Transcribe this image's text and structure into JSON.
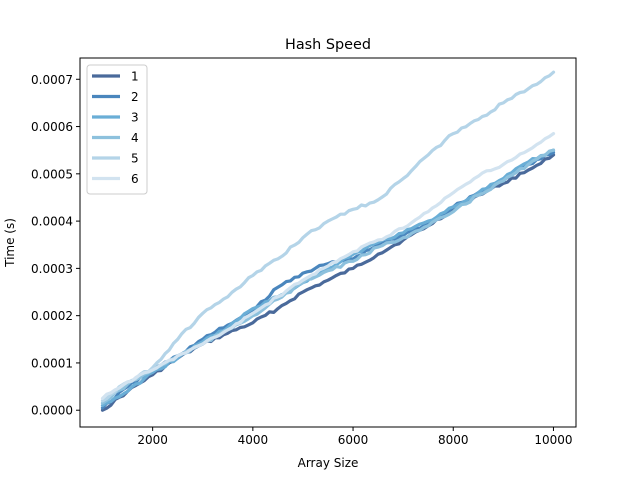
{
  "chart_data": {
    "type": "line",
    "title": "Hash Speed",
    "xlabel": "Array Size",
    "ylabel": "Time (s)",
    "xlim": [
      550,
      10450
    ],
    "ylim": [
      -3.55e-05,
      0.000745
    ],
    "xticks": [
      2000,
      4000,
      6000,
      8000,
      10000
    ],
    "yticks": [
      0.0,
      0.0001,
      0.0002,
      0.0003,
      0.0004,
      0.0005,
      0.0006,
      0.0007
    ],
    "xtick_labels": [
      "2000",
      "4000",
      "6000",
      "8000",
      "10000"
    ],
    "ytick_labels": [
      "0.0000",
      "0.0001",
      "0.0002",
      "0.0003",
      "0.0004",
      "0.0005",
      "0.0006",
      "0.0007"
    ],
    "grid": false,
    "legend_position": "top-left",
    "x": [
      1000,
      1500,
      2000,
      2500,
      3000,
      3500,
      4000,
      4500,
      5000,
      5500,
      6000,
      6500,
      7000,
      7500,
      8000,
      8500,
      9000,
      9500,
      10000
    ],
    "series": [
      {
        "name": "1",
        "color": "#4a6a9b",
        "values": [
          0.0,
          4e-05,
          7.5e-05,
          0.00011,
          0.00014,
          0.000163,
          0.000185,
          0.000215,
          0.00025,
          0.000275,
          0.0003,
          0.00033,
          0.00036,
          0.00039,
          0.000425,
          0.000455,
          0.00048,
          0.000508,
          0.00054
        ]
      },
      {
        "name": "2",
        "color": "#4a86bd",
        "values": [
          5e-06,
          5e-05,
          8.5e-05,
          0.000115,
          0.00015,
          0.00018,
          0.00021,
          0.00026,
          0.00029,
          0.00031,
          0.00032,
          0.00035,
          0.00037,
          0.000395,
          0.00043,
          0.00046,
          0.00049,
          0.00052,
          0.000545
        ]
      },
      {
        "name": "3",
        "color": "#6aaed6",
        "values": [
          1e-05,
          4e-05,
          8e-05,
          0.00011,
          0.000145,
          0.000175,
          0.000215,
          0.00024,
          0.00027,
          0.0003,
          0.00033,
          0.000355,
          0.000375,
          0.0004,
          0.00043,
          0.00046,
          0.00049,
          0.000525,
          0.00055
        ]
      },
      {
        "name": "4",
        "color": "#8dc1dd",
        "values": [
          1.5e-05,
          5.5e-05,
          8.5e-05,
          0.000115,
          0.00014,
          0.00017,
          0.0002,
          0.000235,
          0.00027,
          0.000295,
          0.000315,
          0.000345,
          0.000365,
          0.00039,
          0.00042,
          0.000455,
          0.000485,
          0.00052,
          0.00055
        ]
      },
      {
        "name": "5",
        "color": "#b4d4e8",
        "values": [
          2e-05,
          6e-05,
          9e-05,
          0.00015,
          0.000205,
          0.00024,
          0.000285,
          0.00032,
          0.000365,
          0.0004,
          0.000425,
          0.000445,
          0.00049,
          0.00054,
          0.000585,
          0.000615,
          0.00065,
          0.00068,
          0.000715
        ]
      },
      {
        "name": "6",
        "color": "#d2e3f0",
        "values": [
          2.5e-05,
          6e-05,
          8.5e-05,
          0.000115,
          0.00014,
          0.00017,
          0.000205,
          0.00024,
          0.000275,
          0.000305,
          0.000335,
          0.00036,
          0.000385,
          0.00042,
          0.00046,
          0.000495,
          0.00052,
          0.00055,
          0.000585
        ]
      }
    ]
  }
}
